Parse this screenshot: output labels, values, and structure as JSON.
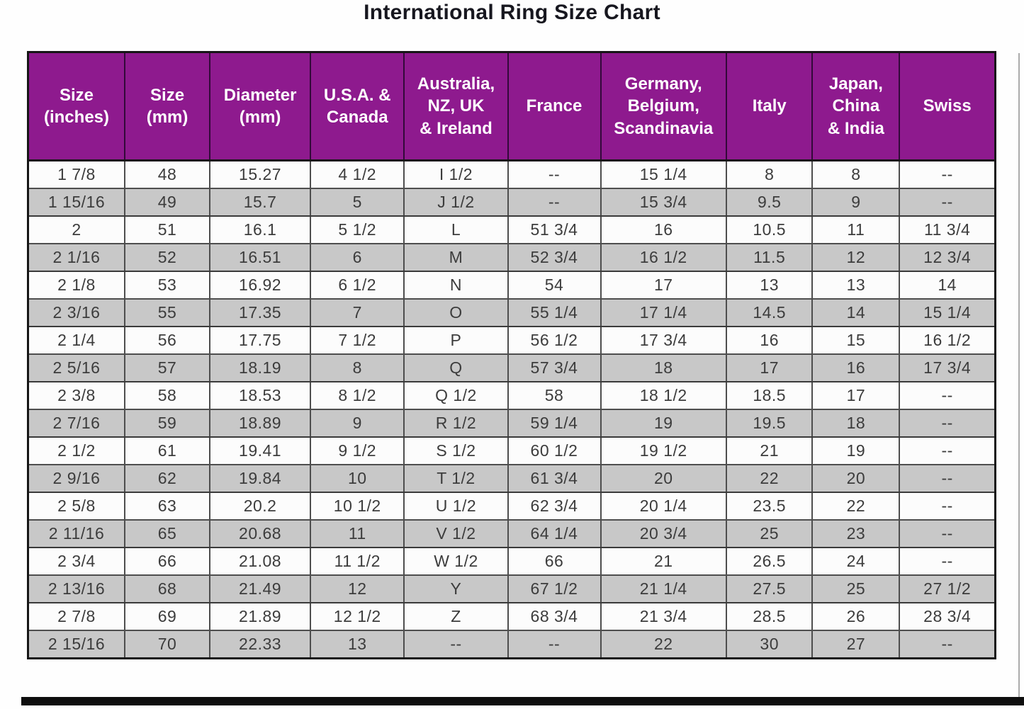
{
  "page_title": "International Ring Size Chart",
  "colors": {
    "header_bg": "#8E1A8E",
    "header_text": "#FFFFFF",
    "row_bg": "#FCFCFC",
    "row_alt_bg": "#C8C8C8",
    "border": "#161616",
    "cell_text": "#3C3C3C",
    "title_text": "#17171F"
  },
  "chart_data": {
    "type": "table",
    "title": "International Ring Size Chart",
    "columns": [
      "Size (inches)",
      "Size (mm)",
      "Diameter (mm)",
      "U.S.A. & Canada",
      "Australia, NZ, UK & Ireland",
      "France",
      "Germany, Belgium, Scandinavia",
      "Italy",
      "Japan, China & India",
      "Swiss"
    ],
    "column_display": [
      "Size\n(inches)",
      "Size\n(mm)",
      "Diameter\n(mm)",
      "U.S.A. &\nCanada",
      "Australia,\nNZ, UK\n& Ireland",
      "France",
      "Germany,\nBelgium,\nScandinavia",
      "Italy",
      "Japan,\nChina\n& India",
      "Swiss"
    ],
    "rows": [
      [
        "1 7/8",
        "48",
        "15.27",
        "4 1/2",
        "I 1/2",
        "--",
        "15 1/4",
        "8",
        "8",
        "--"
      ],
      [
        "1 15/16",
        "49",
        "15.7",
        "5",
        "J 1/2",
        "--",
        "15 3/4",
        "9.5",
        "9",
        "--"
      ],
      [
        "2",
        "51",
        "16.1",
        "5 1/2",
        "L",
        "51 3/4",
        "16",
        "10.5",
        "11",
        "11 3/4"
      ],
      [
        "2 1/16",
        "52",
        "16.51",
        "6",
        "M",
        "52 3/4",
        "16 1/2",
        "11.5",
        "12",
        "12 3/4"
      ],
      [
        "2 1/8",
        "53",
        "16.92",
        "6 1/2",
        "N",
        "54",
        "17",
        "13",
        "13",
        "14"
      ],
      [
        "2 3/16",
        "55",
        "17.35",
        "7",
        "O",
        "55 1/4",
        "17 1/4",
        "14.5",
        "14",
        "15 1/4"
      ],
      [
        "2 1/4",
        "56",
        "17.75",
        "7 1/2",
        "P",
        "56 1/2",
        "17 3/4",
        "16",
        "15",
        "16 1/2"
      ],
      [
        "2 5/16",
        "57",
        "18.19",
        "8",
        "Q",
        "57 3/4",
        "18",
        "17",
        "16",
        "17 3/4"
      ],
      [
        "2 3/8",
        "58",
        "18.53",
        "8 1/2",
        "Q 1/2",
        "58",
        "18 1/2",
        "18.5",
        "17",
        "--"
      ],
      [
        "2 7/16",
        "59",
        "18.89",
        "9",
        "R 1/2",
        "59 1/4",
        "19",
        "19.5",
        "18",
        "--"
      ],
      [
        "2 1/2",
        "61",
        "19.41",
        "9 1/2",
        "S 1/2",
        "60 1/2",
        "19 1/2",
        "21",
        "19",
        "--"
      ],
      [
        "2 9/16",
        "62",
        "19.84",
        "10",
        "T 1/2",
        "61 3/4",
        "20",
        "22",
        "20",
        "--"
      ],
      [
        "2 5/8",
        "63",
        "20.2",
        "10 1/2",
        "U 1/2",
        "62 3/4",
        "20 1/4",
        "23.5",
        "22",
        "--"
      ],
      [
        "2 11/16",
        "65",
        "20.68",
        "11",
        "V 1/2",
        "64 1/4",
        "20 3/4",
        "25",
        "23",
        "--"
      ],
      [
        "2 3/4",
        "66",
        "21.08",
        "11 1/2",
        "W 1/2",
        "66",
        "21",
        "26.5",
        "24",
        "--"
      ],
      [
        "2 13/16",
        "68",
        "21.49",
        "12",
        "Y",
        "67 1/2",
        "21 1/4",
        "27.5",
        "25",
        "27 1/2"
      ],
      [
        "2 7/8",
        "69",
        "21.89",
        "12 1/2",
        "Z",
        "68 3/4",
        "21 3/4",
        "28.5",
        "26",
        "28 3/4"
      ],
      [
        "2 15/16",
        "70",
        "22.33",
        "13",
        "--",
        "--",
        "22",
        "30",
        "27",
        "--"
      ]
    ],
    "layout_hints": {
      "header_style": "purple band with white bold multi-line labels",
      "striping": "alternating white and gray rows starting with white",
      "grid": "on"
    }
  }
}
